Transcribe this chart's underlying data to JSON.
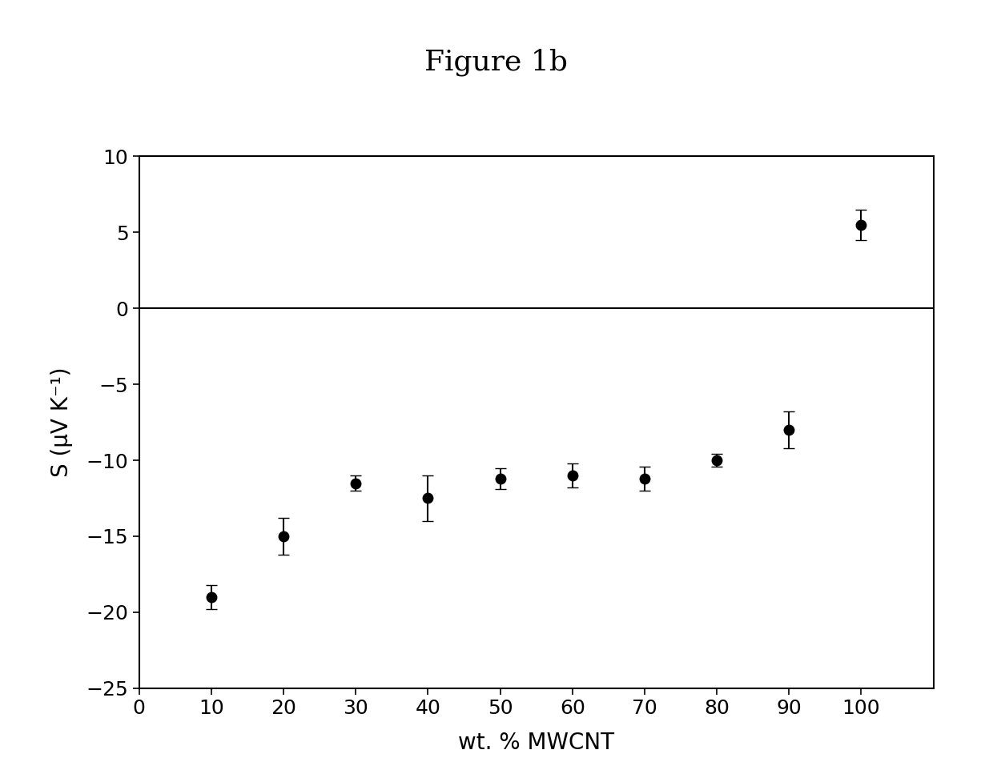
{
  "title": "Figure 1b",
  "xlabel": "wt. % MWCNT",
  "ylabel": "S (μV K⁻¹)",
  "x": [
    10,
    20,
    30,
    40,
    50,
    60,
    70,
    80,
    90,
    100
  ],
  "y": [
    -19.0,
    -15.0,
    -11.5,
    -12.5,
    -11.2,
    -11.0,
    -11.2,
    -10.0,
    -8.0,
    5.5
  ],
  "yerr": [
    0.8,
    1.2,
    0.5,
    1.5,
    0.7,
    0.8,
    0.8,
    0.4,
    1.2,
    1.0
  ],
  "xlim": [
    0,
    110
  ],
  "ylim": [
    -25,
    10
  ],
  "xticks": [
    0,
    10,
    20,
    30,
    40,
    50,
    60,
    70,
    80,
    90,
    100
  ],
  "yticks": [
    -25,
    -20,
    -15,
    -10,
    -5,
    0,
    5,
    10
  ],
  "title_fontsize": 26,
  "label_fontsize": 20,
  "tick_fontsize": 18,
  "marker_size": 9,
  "capsize": 5,
  "elinewidth": 1.5,
  "capthick": 1.5,
  "background_color": "#ffffff",
  "data_color": "#000000",
  "zero_line_color": "#000000",
  "spine_linewidth": 1.5,
  "axhline_linewidth": 1.5
}
